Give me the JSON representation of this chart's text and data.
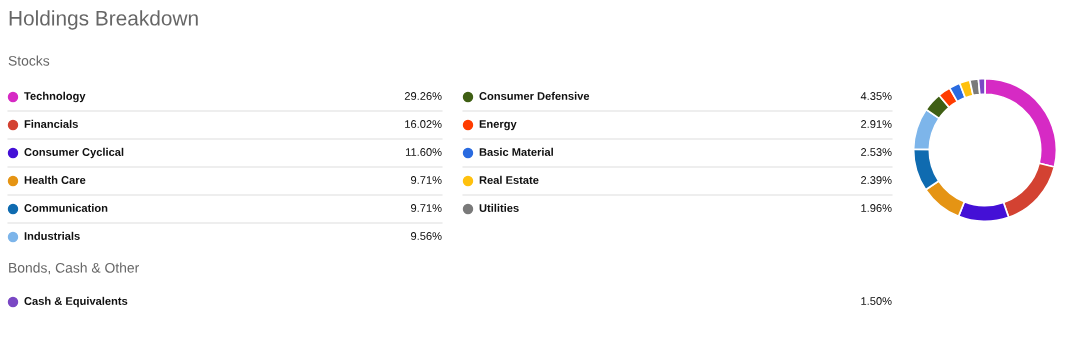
{
  "chart_data": {
    "type": "donut",
    "title": "Holdings Breakdown",
    "annotations": [
      "Stocks",
      "Bonds, Cash & Other"
    ],
    "categories": [
      "Technology",
      "Financials",
      "Consumer Cyclical",
      "Health Care",
      "Communication",
      "Industrials",
      "Consumer Defensive",
      "Energy",
      "Basic Material",
      "Real Estate",
      "Utilities",
      "Cash & Equivalents"
    ],
    "values": [
      29.26,
      16.02,
      11.6,
      9.71,
      9.71,
      9.56,
      4.35,
      2.91,
      2.53,
      2.39,
      1.96,
      1.5
    ],
    "value_labels": [
      "29.26%",
      "16.02%",
      "11.60%",
      "9.71%",
      "9.71%",
      "9.56%",
      "4.35%",
      "2.91%",
      "2.53%",
      "2.39%",
      "1.96%",
      "1.50%"
    ],
    "colors": [
      "#d62ac4",
      "#d34232",
      "#4410d6",
      "#e59414",
      "#0f6bb0",
      "#7db5ea",
      "#3f5f14",
      "#ff3c00",
      "#2a6be0",
      "#ffc10e",
      "#7a7a7a",
      "#7a48c4"
    ],
    "legend": "left"
  }
}
